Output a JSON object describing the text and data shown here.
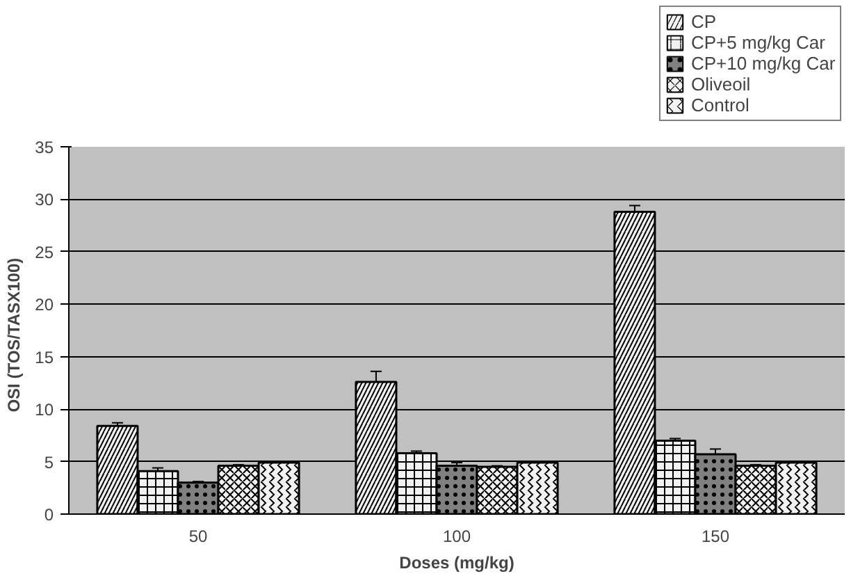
{
  "chart_data": {
    "type": "bar",
    "xlabel": "Doses (mg/kg)",
    "ylabel": "OSI   (TOS/TASX100)",
    "categories": [
      "50",
      "100",
      "150"
    ],
    "series": [
      {
        "name": "CP",
        "color": "#f2f2f2",
        "values": [
          8.4,
          12.6,
          28.8
        ],
        "errors": [
          0.3,
          1.0,
          0.6
        ]
      },
      {
        "name": "CP+5 mg/kg Car",
        "color": "#f2f2f2",
        "values": [
          4.1,
          5.8,
          7.0
        ],
        "errors": [
          0.3,
          0.2,
          0.2
        ]
      },
      {
        "name": "CP+10 mg/kg Car",
        "color": "#808080",
        "values": [
          3.0,
          4.6,
          5.7
        ],
        "errors": [
          0.1,
          0.3,
          0.5
        ]
      },
      {
        "name": "Oliveoil",
        "color": "#f2f2f2",
        "values": [
          4.6,
          4.5,
          4.6
        ],
        "errors": [
          0.1,
          0.1,
          0.1
        ]
      },
      {
        "name": "Control",
        "color": "#f2f2f2",
        "values": [
          4.9,
          4.9,
          4.9
        ],
        "errors": [
          0.1,
          0.1,
          0.1
        ]
      }
    ],
    "ylim": [
      0,
      35
    ],
    "yticks": [
      0,
      5,
      10,
      15,
      20,
      25,
      30,
      35
    ],
    "grid": "y",
    "legend": "top right"
  }
}
